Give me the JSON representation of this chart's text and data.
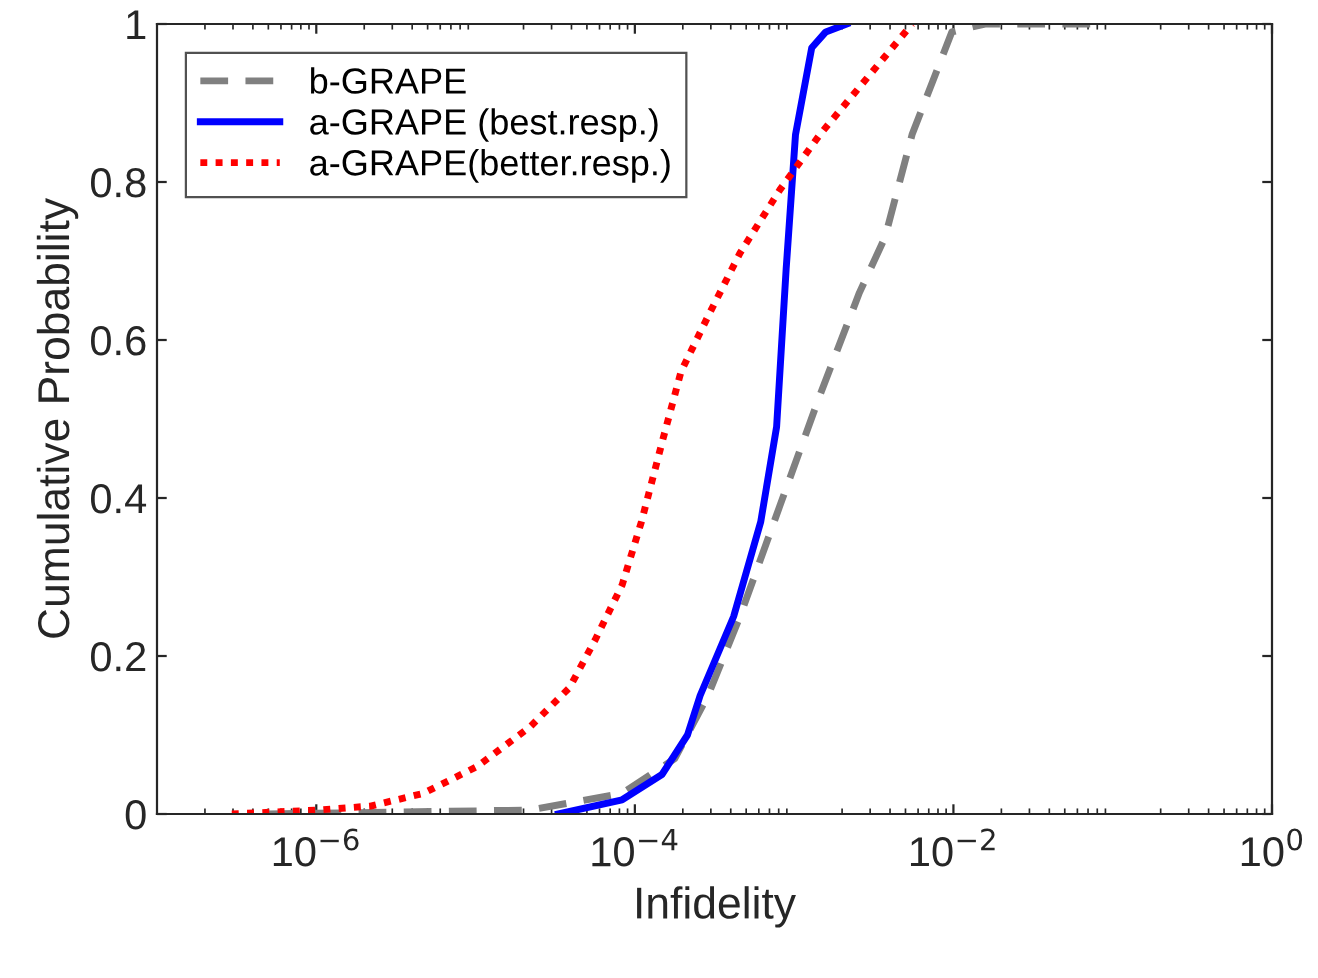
{
  "chart_data": {
    "type": "line",
    "xlabel": "Infidelity",
    "ylabel": "Cumulative Probability",
    "log": "x",
    "grid": false,
    "legend": "top left",
    "xlim": [
      1e-07,
      1
    ],
    "ylim": [
      0,
      1
    ],
    "xticks": [
      {
        "value": 1e-06,
        "label": "10$^{−6}$"
      },
      {
        "value": 0.0001,
        "label": "10$^{−4}$"
      },
      {
        "value": 0.01,
        "label": "10$^{−2}$"
      },
      {
        "value": 1,
        "label": "10$^{0}$"
      }
    ],
    "yticks": [
      0,
      0.2,
      0.4,
      0.6,
      0.8,
      1
    ],
    "series": [
      {
        "name": "b-GRAPE",
        "color": "#808080",
        "line_style": "dashed",
        "x": [
          5e-07,
          2.19e-05,
          8.32e-05,
          0.000178,
          0.000288,
          0.000457,
          0.000813,
          0.00145,
          0.00257,
          0.00372,
          0.0055,
          0.00977,
          0.0158,
          0.0794
        ],
        "values": [
          0,
          0.005,
          0.026,
          0.07,
          0.15,
          0.25,
          0.39,
          0.53,
          0.66,
          0.73,
          0.86,
          0.99,
          1,
          1
        ]
      },
      {
        "name": "a-GRAPE (best.resp.)",
        "color": "#0000ff",
        "line_style": "solid",
        "x": [
          3.31e-05,
          8.32e-05,
          0.000148,
          0.000214,
          0.000257,
          0.000417,
          0.000617,
          0.000776,
          0.000891,
          0.00102,
          0.00129,
          0.00158,
          0.00214
        ],
        "values": [
          0,
          0.018,
          0.05,
          0.1,
          0.15,
          0.25,
          0.37,
          0.49,
          0.69,
          0.86,
          0.97,
          0.99,
          1
        ]
      },
      {
        "name": "a-GRAPE(better.resp.)",
        "color": "#ff0000",
        "line_style": "dotted",
        "x": [
          2.95e-07,
          1.02e-06,
          2.19e-06,
          4.68e-06,
          1.02e-05,
          2.19e-05,
          3.89e-05,
          5.62e-05,
          8.32e-05,
          0.00011,
          0.000148,
          0.000195,
          0.000288,
          0.000457,
          0.000813,
          0.00145,
          0.00257,
          0.0055
        ],
        "values": [
          0,
          0.005,
          0.01,
          0.026,
          0.06,
          0.11,
          0.16,
          0.22,
          0.29,
          0.37,
          0.47,
          0.56,
          0.63,
          0.71,
          0.79,
          0.86,
          0.92,
          1
        ]
      }
    ]
  }
}
